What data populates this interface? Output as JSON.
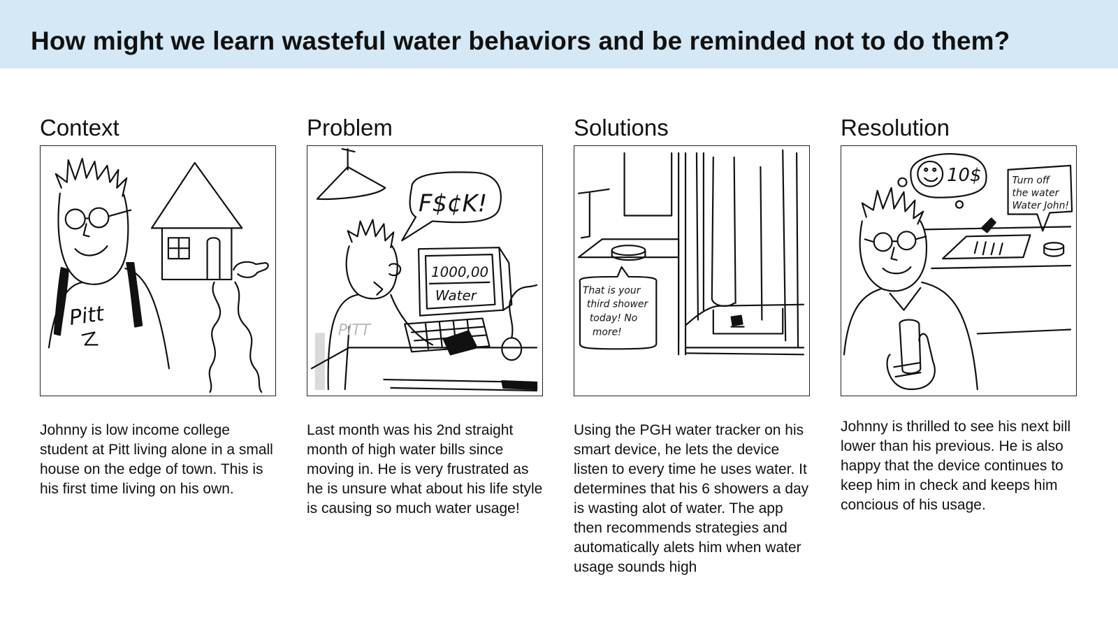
{
  "header": {
    "title": "How might we learn wasteful water behaviors and be reminded not to do them?"
  },
  "panels": [
    {
      "heading": "Context",
      "sketch_text": [
        "Pitt"
      ],
      "body": "Johnny is low income college student at Pitt living alone in a small house on the edge of town. This is his first time living on his own."
    },
    {
      "heading": "Problem",
      "sketch_text": [
        "F$¢K!",
        "1000,00",
        "Water",
        "PITT"
      ],
      "body": "Last month was his 2nd straight month of high water bills since moving in. He is very frustrated as he is unsure what about his life style is causing so much water usage!"
    },
    {
      "heading": "Solutions",
      "sketch_text": [
        "That is your",
        "third shower",
        "today! No",
        "more!"
      ],
      "body": "Using the PGH water tracker on his smart device, he lets the device listen to every time he uses water. It determines that his 6 showers a day is wasting alot of water. The app then recommends strategies and automatically alets him when water usage sounds high"
    },
    {
      "heading": "Resolution",
      "sketch_text": [
        "10$",
        "Turn off",
        "the water",
        "Water John!"
      ],
      "body": "Johnny is thrilled to see his next bill lower than his previous. He is also happy that the device continues to keep him in check and keeps him concious of his usage."
    }
  ]
}
